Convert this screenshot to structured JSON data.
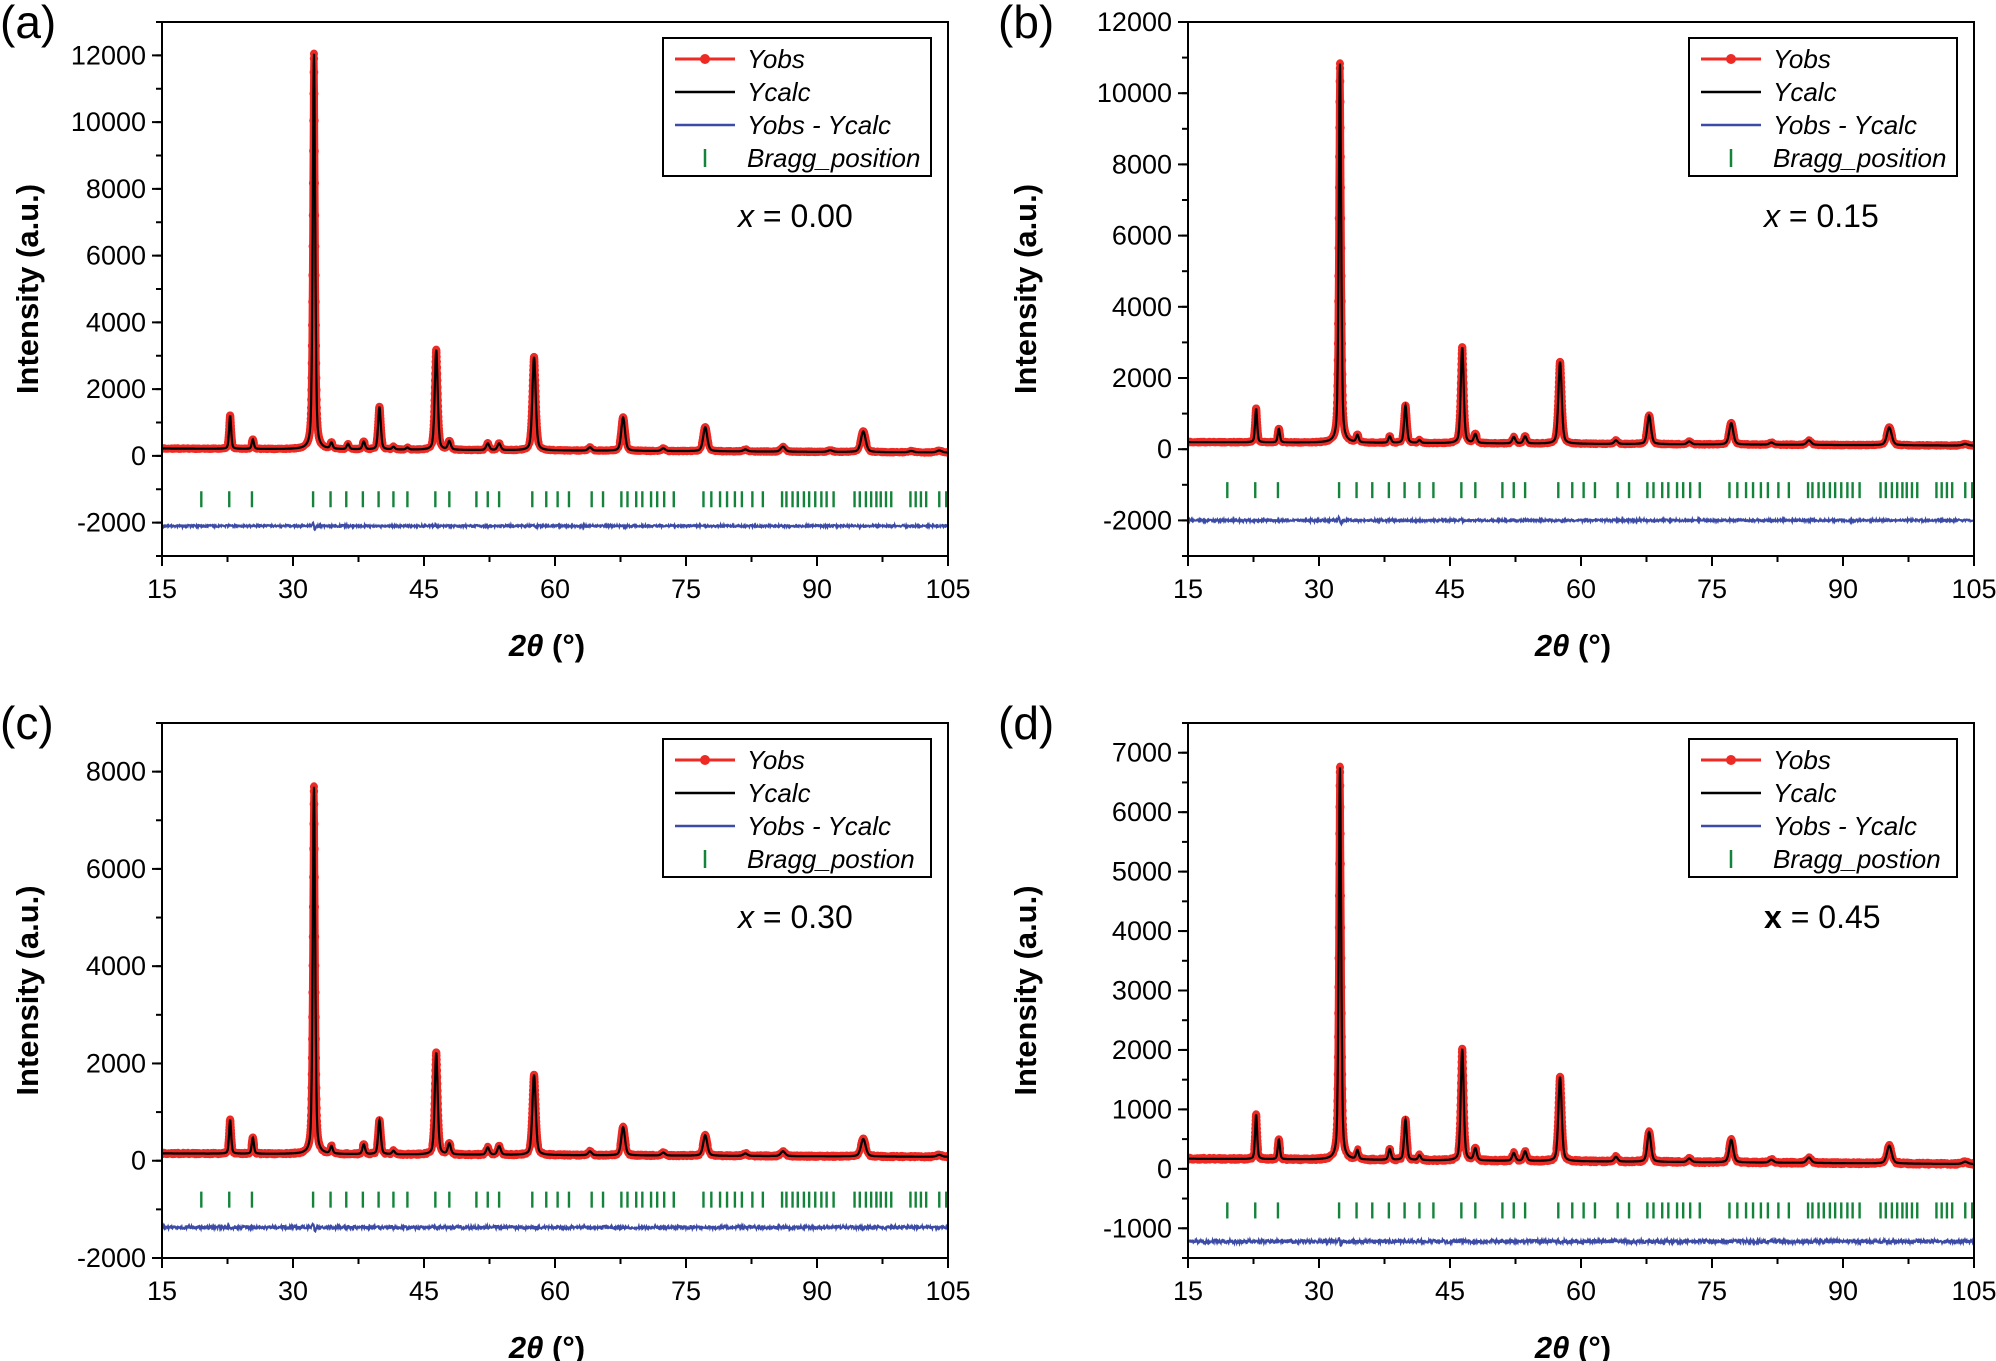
{
  "colors": {
    "obs": "#ee2a24",
    "calc": "#000000",
    "diff": "#3b4ba6",
    "bragg": "#14843a"
  },
  "chart_data": [
    {
      "type": "line",
      "panel_label": "(a)",
      "annotation_var": "x",
      "annotation_value": " = 0.00",
      "annotation_bold": false,
      "xlabel_main": "2θ",
      "xlabel_unit": " (°)",
      "ylabel": "Intensity (a.u.)",
      "xlim": [
        15,
        105
      ],
      "ylim": [
        -3000,
        13000
      ],
      "xticks": [
        15,
        30,
        45,
        60,
        75,
        90,
        105
      ],
      "yticks": [
        -2000,
        0,
        2000,
        4000,
        6000,
        8000,
        10000,
        12000
      ],
      "yminor_step": 1000,
      "legend": [
        "Yobs",
        "Ycalc",
        "Yobs - Ycalc",
        "Bragg_position"
      ],
      "legend_placement": "top-right",
      "background": [
        220,
        100
      ],
      "diff_offset": -2100,
      "bragg_level": -1300,
      "peaks": [
        [
          22.8,
          1000
        ],
        [
          25.4,
          280
        ],
        [
          32.4,
          11850
        ],
        [
          34.4,
          180
        ],
        [
          36.3,
          160
        ],
        [
          38.1,
          230
        ],
        [
          39.9,
          1280
        ],
        [
          41.5,
          80
        ],
        [
          43.1,
          60
        ],
        [
          46.4,
          3000
        ],
        [
          47.9,
          250
        ],
        [
          52.3,
          200
        ],
        [
          53.6,
          200
        ],
        [
          57.6,
          2800
        ],
        [
          64.0,
          100
        ],
        [
          67.8,
          1000
        ],
        [
          72.4,
          80
        ],
        [
          77.2,
          720
        ],
        [
          81.8,
          60
        ],
        [
          86.1,
          150
        ],
        [
          91.5,
          50
        ],
        [
          95.3,
          620
        ],
        [
          100.8,
          40
        ],
        [
          104.0,
          60
        ]
      ]
    },
    {
      "type": "line",
      "panel_label": "(b)",
      "annotation_var": "x",
      "annotation_value": " = 0.15",
      "annotation_bold": false,
      "xlabel_main": "2θ",
      "xlabel_unit": " (°)",
      "ylabel": "Intensity (a.u.)",
      "xlim": [
        15,
        105
      ],
      "ylim": [
        -3000,
        12000
      ],
      "xticks": [
        15,
        30,
        45,
        60,
        75,
        90,
        105
      ],
      "yticks": [
        -2000,
        0,
        2000,
        4000,
        6000,
        8000,
        10000,
        12000
      ],
      "yminor_step": 1000,
      "legend": [
        "Yobs",
        "Ycalc",
        "Yobs - Ycalc",
        "Bragg_position"
      ],
      "legend_placement": "top-right",
      "background": [
        200,
        100
      ],
      "diff_offset": -2000,
      "bragg_level": -1150,
      "peaks": [
        [
          22.8,
          950
        ],
        [
          25.4,
          380
        ],
        [
          32.4,
          10650
        ],
        [
          34.4,
          200
        ],
        [
          38.1,
          180
        ],
        [
          39.9,
          1050
        ],
        [
          41.5,
          80
        ],
        [
          46.4,
          2700
        ],
        [
          47.9,
          250
        ],
        [
          52.3,
          180
        ],
        [
          53.6,
          200
        ],
        [
          57.6,
          2300
        ],
        [
          64.0,
          100
        ],
        [
          67.8,
          800
        ],
        [
          72.4,
          80
        ],
        [
          77.2,
          600
        ],
        [
          81.8,
          60
        ],
        [
          86.1,
          130
        ],
        [
          95.3,
          500
        ],
        [
          104.0,
          50
        ]
      ]
    },
    {
      "type": "line",
      "panel_label": "(c)",
      "annotation_var": "x",
      "annotation_value": " = 0.30",
      "annotation_bold": false,
      "xlabel_main": "2θ",
      "xlabel_unit": " (°)",
      "ylabel": "Intensity (a.u.)",
      "xlim": [
        15,
        105
      ],
      "ylim": [
        -2000,
        9000
      ],
      "xticks": [
        15,
        30,
        45,
        60,
        75,
        90,
        105
      ],
      "yticks": [
        -2000,
        0,
        2000,
        4000,
        6000,
        8000
      ],
      "yminor_step": 1000,
      "legend": [
        "Yobs",
        "Ycalc",
        "Yobs - Ycalc",
        "Bragg_postion"
      ],
      "legend_placement": "top-right",
      "background": [
        150,
        80
      ],
      "diff_offset": -1370,
      "bragg_level": -800,
      "peaks": [
        [
          22.8,
          700
        ],
        [
          25.4,
          330
        ],
        [
          32.4,
          7550
        ],
        [
          34.4,
          150
        ],
        [
          38.1,
          200
        ],
        [
          39.9,
          700
        ],
        [
          41.5,
          70
        ],
        [
          46.4,
          2100
        ],
        [
          47.9,
          220
        ],
        [
          52.3,
          150
        ],
        [
          53.6,
          180
        ],
        [
          57.6,
          1650
        ],
        [
          64.0,
          80
        ],
        [
          67.8,
          580
        ],
        [
          72.4,
          60
        ],
        [
          77.2,
          420
        ],
        [
          81.8,
          50
        ],
        [
          86.1,
          100
        ],
        [
          95.3,
          360
        ],
        [
          104.0,
          40
        ]
      ]
    },
    {
      "type": "line",
      "panel_label": "(d)",
      "annotation_var": "x",
      "annotation_value": " = 0.45",
      "annotation_bold": true,
      "xlabel_main": "2θ",
      "xlabel_unit": " (°)",
      "ylabel": "Intensity (a.u.)",
      "xlim": [
        15,
        105
      ],
      "ylim": [
        -1500,
        7500
      ],
      "xticks": [
        15,
        30,
        45,
        60,
        75,
        90,
        105
      ],
      "yticks": [
        -1000,
        0,
        1000,
        2000,
        3000,
        4000,
        5000,
        6000,
        7000
      ],
      "yminor_step": 500,
      "legend": [
        "Yobs",
        "Ycalc",
        "Yobs - Ycalc",
        "Bragg_postion"
      ],
      "legend_placement": "top-right",
      "background": [
        170,
        80
      ],
      "diff_offset": -1220,
      "bragg_level": -700,
      "peaks": [
        [
          22.8,
          750
        ],
        [
          25.4,
          330
        ],
        [
          32.4,
          6600
        ],
        [
          34.4,
          150
        ],
        [
          38.1,
          180
        ],
        [
          39.9,
          680
        ],
        [
          41.5,
          80
        ],
        [
          46.4,
          1880
        ],
        [
          47.9,
          200
        ],
        [
          52.3,
          130
        ],
        [
          53.6,
          160
        ],
        [
          57.6,
          1420
        ],
        [
          64.0,
          80
        ],
        [
          67.8,
          500
        ],
        [
          72.4,
          60
        ],
        [
          77.2,
          380
        ],
        [
          81.8,
          50
        ],
        [
          86.1,
          90
        ],
        [
          95.3,
          300
        ],
        [
          104.0,
          40
        ]
      ]
    }
  ],
  "bragg_positions": [
    19.5,
    22.7,
    25.3,
    32.3,
    34.3,
    36.1,
    38.0,
    39.8,
    41.5,
    43.1,
    46.3,
    47.9,
    51.0,
    52.3,
    53.6,
    57.4,
    59.0,
    60.3,
    61.6,
    64.2,
    65.5,
    67.6,
    68.3,
    69.3,
    70.0,
    71.0,
    71.7,
    72.5,
    73.6,
    77.0,
    77.9,
    78.9,
    79.7,
    80.6,
    81.4,
    82.6,
    83.8,
    86.0,
    86.5,
    87.2,
    87.8,
    88.5,
    89.1,
    89.8,
    90.5,
    91.1,
    91.9,
    94.3,
    94.9,
    95.6,
    96.2,
    96.8,
    97.3,
    97.9,
    98.5,
    100.7,
    101.3,
    101.9,
    102.5,
    104.0,
    104.8
  ]
}
